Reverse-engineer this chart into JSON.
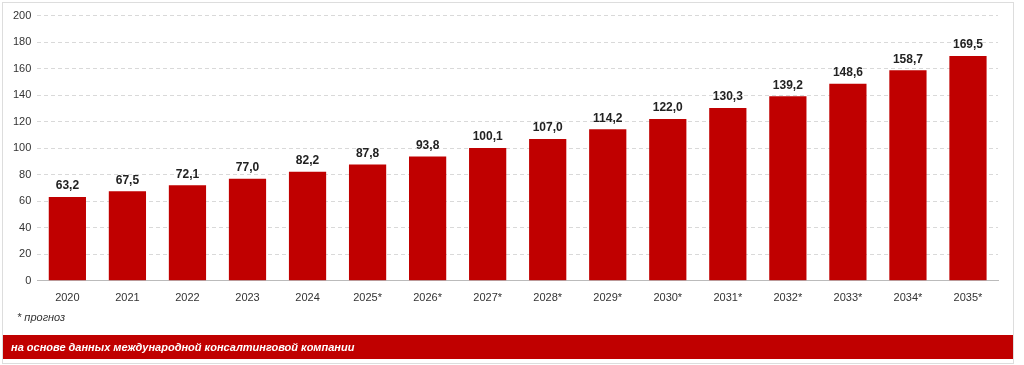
{
  "chart_data": {
    "type": "bar",
    "categories": [
      "2020",
      "2021",
      "2022",
      "2023",
      "2024",
      "2025*",
      "2026*",
      "2027*",
      "2028*",
      "2029*",
      "2030*",
      "2031*",
      "2032*",
      "2033*",
      "2034*",
      "2035*"
    ],
    "values": [
      63.2,
      67.5,
      72.1,
      77.0,
      82.2,
      87.8,
      93.8,
      100.1,
      107.0,
      114.2,
      122.0,
      130.3,
      139.2,
      148.6,
      158.7,
      169.5
    ],
    "value_labels": [
      "63,2",
      "67,5",
      "72,1",
      "77,0",
      "82,2",
      "87,8",
      "93,8",
      "100,1",
      "107,0",
      "114,2",
      "122,0",
      "130,3",
      "139,2",
      "148,6",
      "158,7",
      "169,5"
    ],
    "color": "#c00000",
    "ylim": [
      0,
      200
    ],
    "yticks": [
      0,
      20,
      40,
      60,
      80,
      100,
      120,
      140,
      160,
      180,
      200
    ],
    "grid": "y",
    "legend": false,
    "annotations": [
      "* прогноз",
      "на основе данных международной консалтинговой компании"
    ]
  }
}
